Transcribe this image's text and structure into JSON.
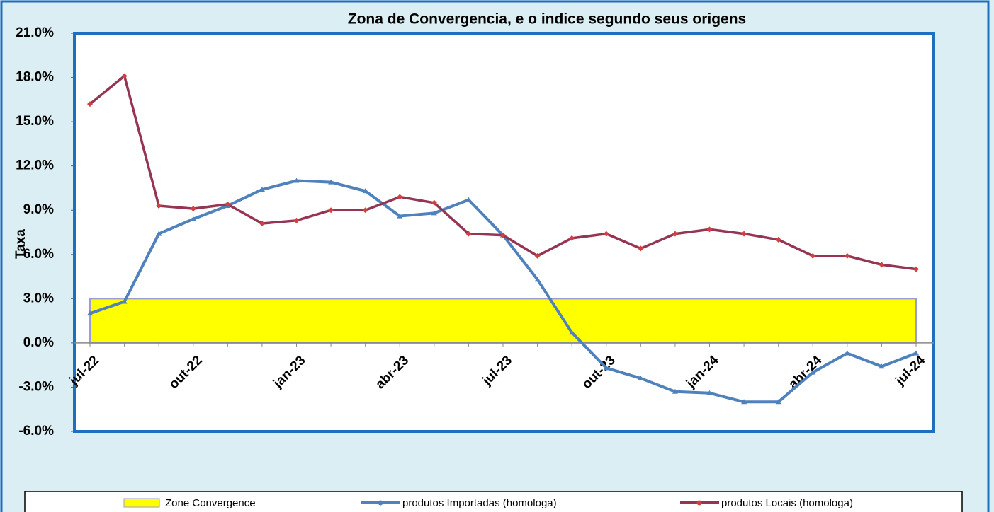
{
  "chart_data": {
    "type": "line",
    "title": "Zona de Convergencia, e o indice segundo seus origens",
    "y_label": "Taxa",
    "categories": [
      "jul-22",
      null,
      null,
      "out-22",
      null,
      null,
      "jan-23",
      null,
      null,
      "abr-23",
      null,
      null,
      "jul-23",
      null,
      null,
      "out-23",
      null,
      null,
      "jan-24",
      null,
      null,
      "abr-24",
      null,
      null,
      "jul-24"
    ],
    "series": [
      {
        "name": "Zone Convergence",
        "type": "area",
        "color": "#ffff00",
        "values": [
          3,
          3,
          3,
          3,
          3,
          3,
          3,
          3,
          3,
          3,
          3,
          3,
          3,
          3,
          3,
          3,
          3,
          3,
          3,
          3,
          3,
          3,
          3,
          3,
          3
        ]
      },
      {
        "name": "produtos Importadas (homologa)",
        "type": "line",
        "color": "#4f81bd",
        "values": [
          2.0,
          2.8,
          7.4,
          8.4,
          9.3,
          10.4,
          11.0,
          10.9,
          10.3,
          8.6,
          8.8,
          9.7,
          7.3,
          4.3,
          0.7,
          -1.7,
          -2.4,
          -3.3,
          -3.4,
          -4.0,
          -4.0,
          -2.0,
          -0.7,
          -1.6,
          -0.7
        ]
      },
      {
        "name": "produtos Locais (homologa)",
        "type": "line",
        "color": "#953553",
        "values": [
          16.2,
          18.1,
          9.3,
          9.1,
          9.4,
          8.1,
          8.3,
          9.0,
          9.0,
          9.9,
          9.5,
          7.4,
          7.3,
          5.9,
          7.1,
          7.4,
          6.4,
          7.4,
          7.7,
          7.4,
          7.0,
          5.9,
          5.9,
          5.3,
          5.0
        ]
      }
    ],
    "ylim": [
      -6,
      21
    ],
    "yticks": [
      {
        "value": -6,
        "label": "-6.0%"
      },
      {
        "value": -3,
        "label": "-3.0%"
      },
      {
        "value": 0,
        "label": "0.0%"
      },
      {
        "value": 3,
        "label": "3.0%"
      },
      {
        "value": 6,
        "label": "6.0%"
      },
      {
        "value": 9,
        "label": "9.0%"
      },
      {
        "value": 12,
        "label": "12.0%"
      },
      {
        "value": 15,
        "label": "15.0%"
      },
      {
        "value": 18,
        "label": "18.0%"
      },
      {
        "value": 21,
        "label": "21.0%"
      }
    ],
    "legend": "bottom"
  }
}
